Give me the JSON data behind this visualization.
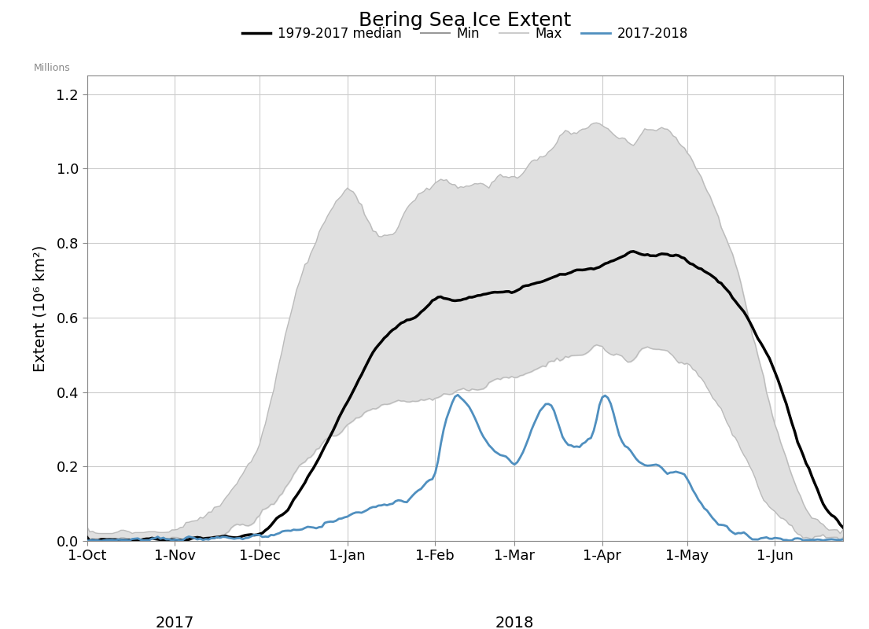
{
  "title": "Bering Sea Ice Extent",
  "ylabel": "Extent (10⁶ km²)",
  "ylabel_small": "Millions",
  "ylim": [
    0.0,
    1.25
  ],
  "yticks": [
    0.0,
    0.2,
    0.4,
    0.6,
    0.8,
    1.0,
    1.2
  ],
  "color_median": "#000000",
  "color_min": "#bbbbbb",
  "color_max": "#bbbbbb",
  "color_2018": "#4f8fbf",
  "color_fill": "#e0e0e0",
  "legend_labels": [
    "1979-2017 median",
    "Min",
    "Max",
    "2017-2018"
  ],
  "x_tick_labels": [
    "1-Oct",
    "1-Nov",
    "1-Dec",
    "1-Jan",
    "1-Feb",
    "1-Mar",
    "1-Apr",
    "1-May",
    "1-Jun"
  ],
  "background_color": "#ffffff",
  "grid_color": "#cccccc"
}
